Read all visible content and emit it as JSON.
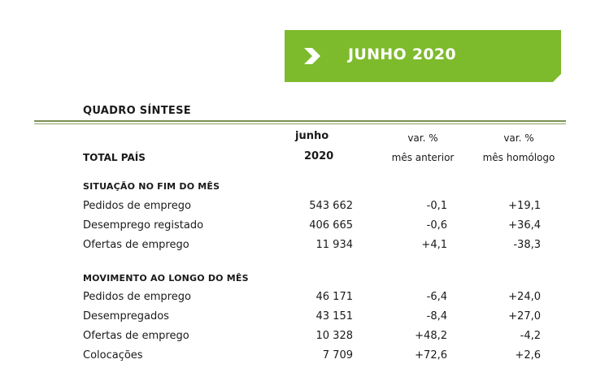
{
  "banner": {
    "title": "JUNHO 2020",
    "color": "#7dbb2c",
    "icon": "chevron-right-icon"
  },
  "heading": "QUADRO  SÍNTESE",
  "columns": {
    "label": "TOTAL PAÍS",
    "col1_line1": "junho",
    "col1_line2": "2020",
    "col2_line1": "var. %",
    "col2_line2": "mês anterior",
    "col3_line1": "var. %",
    "col3_line2": "mês homólogo"
  },
  "sections": [
    {
      "title": "SITUAÇÃO NO FIM DO MÊS",
      "rows": [
        {
          "label": "Pedidos de emprego",
          "value": "543 662",
          "var_prev": "-0,1",
          "var_year": "+19,1"
        },
        {
          "label": "Desemprego registado",
          "value": "406 665",
          "var_prev": "-0,6",
          "var_year": "+36,4"
        },
        {
          "label": "Ofertas de emprego",
          "value": "11 934",
          "var_prev": "+4,1",
          "var_year": "-38,3"
        }
      ]
    },
    {
      "title": "MOVIMENTO AO LONGO DO MÊS",
      "rows": [
        {
          "label": "Pedidos de emprego",
          "value": "46 171",
          "var_prev": "-6,4",
          "var_year": "+24,0"
        },
        {
          "label": "Desempregados",
          "value": "43 151",
          "var_prev": "-8,4",
          "var_year": "+27,0"
        },
        {
          "label": "Ofertas de emprego",
          "value": "10 328",
          "var_prev": "+48,2",
          "var_year": "-4,2"
        },
        {
          "label": "Colocações",
          "value": "7 709",
          "var_prev": "+72,6",
          "var_year": "+2,6"
        }
      ]
    }
  ]
}
